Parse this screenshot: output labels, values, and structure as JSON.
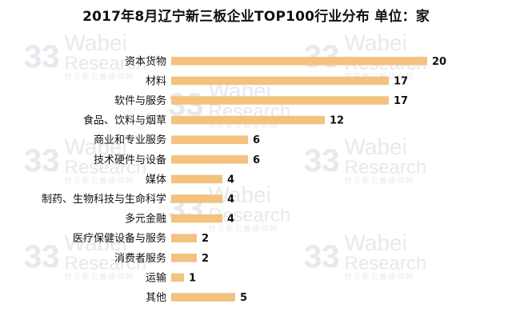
{
  "chart_data": {
    "type": "bar",
    "orientation": "horizontal",
    "title": "2017年8月辽宁新三板企业TOP100行业分布 单位：家",
    "categories": [
      "资本货物",
      "材料",
      "软件与服务",
      "食品、饮料与烟草",
      "商业和专业服务",
      "技术硬件与设备",
      "媒体",
      "制药、生物科技与生命科学",
      "多元金融",
      "医疗保健设备与服务",
      "消费者服务",
      "运输",
      "其他"
    ],
    "values": [
      20,
      17,
      17,
      12,
      6,
      6,
      4,
      4,
      4,
      2,
      2,
      1,
      5
    ],
    "xlim": [
      0,
      20
    ],
    "bar_color": "#f3c27f",
    "grid": false,
    "legend": "none"
  },
  "watermark": {
    "big": "33",
    "line1": "Wabei",
    "line2": "Research",
    "line3": "挖贝新三板研究院"
  }
}
